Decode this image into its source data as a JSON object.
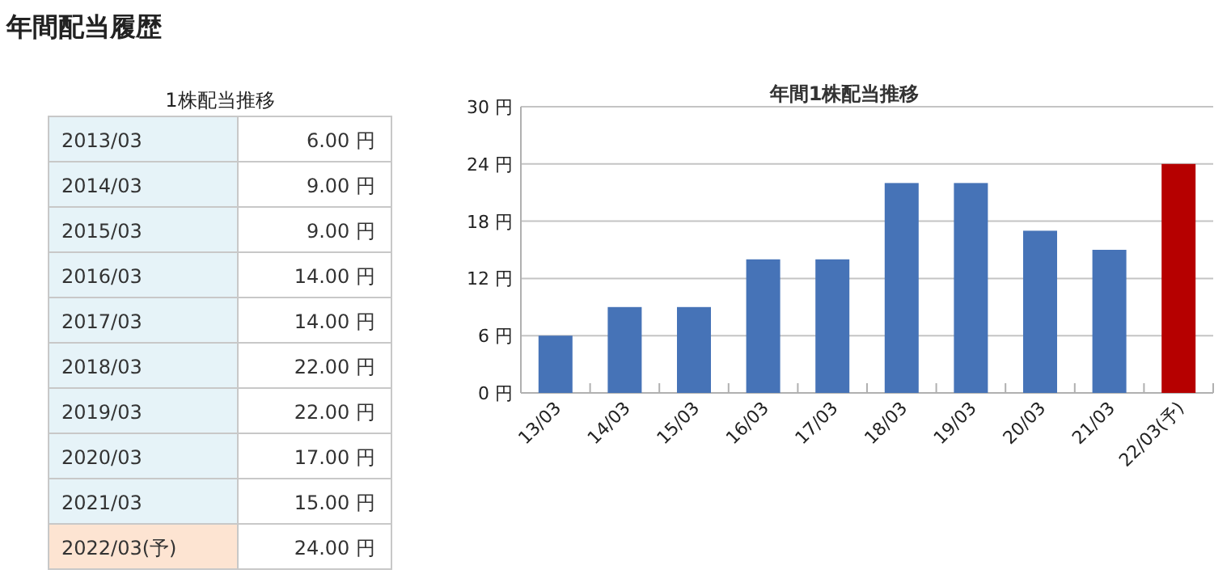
{
  "chart_data": [
    {
      "type": "other",
      "title": "年間配当履歴",
      "subtitle": "1株配当推移",
      "annotations": [
        "2013/03",
        "6.00 円",
        "2014/03",
        "9.00 円",
        "2015/03",
        "9.00 円",
        "2016/03",
        "14.00 円",
        "2017/03",
        "14.00 円",
        "2018/03",
        "22.00 円",
        "2019/03",
        "22.00 円",
        "2020/03",
        "17.00 円",
        "2021/03",
        "15.00 円",
        "2022/03(予)",
        "24.00 円"
      ]
    },
    {
      "type": "bar",
      "title": "年間1株配当推移",
      "categories": [
        "13/03",
        "14/03",
        "15/03",
        "16/03",
        "17/03",
        "18/03",
        "19/03",
        "20/03",
        "21/03",
        "22/03(予)"
      ],
      "values": [
        6,
        9,
        9,
        14,
        14,
        22,
        22,
        17,
        15,
        24
      ],
      "colors": [
        "#4673b7",
        "#4673b7",
        "#4673b7",
        "#4673b7",
        "#4673b7",
        "#4673b7",
        "#4673b7",
        "#4673b7",
        "#4673b7",
        "#b60000"
      ],
      "ylim": [
        0,
        30
      ],
      "yticks": [
        {
          "value": 0,
          "label": "0 円"
        },
        {
          "value": 6,
          "label": "6 円"
        },
        {
          "value": 12,
          "label": "12 円"
        },
        {
          "value": 18,
          "label": "18 円"
        },
        {
          "value": 24,
          "label": "24 円"
        },
        {
          "value": 30,
          "label": "30 円"
        }
      ],
      "grid": "y"
    }
  ]
}
